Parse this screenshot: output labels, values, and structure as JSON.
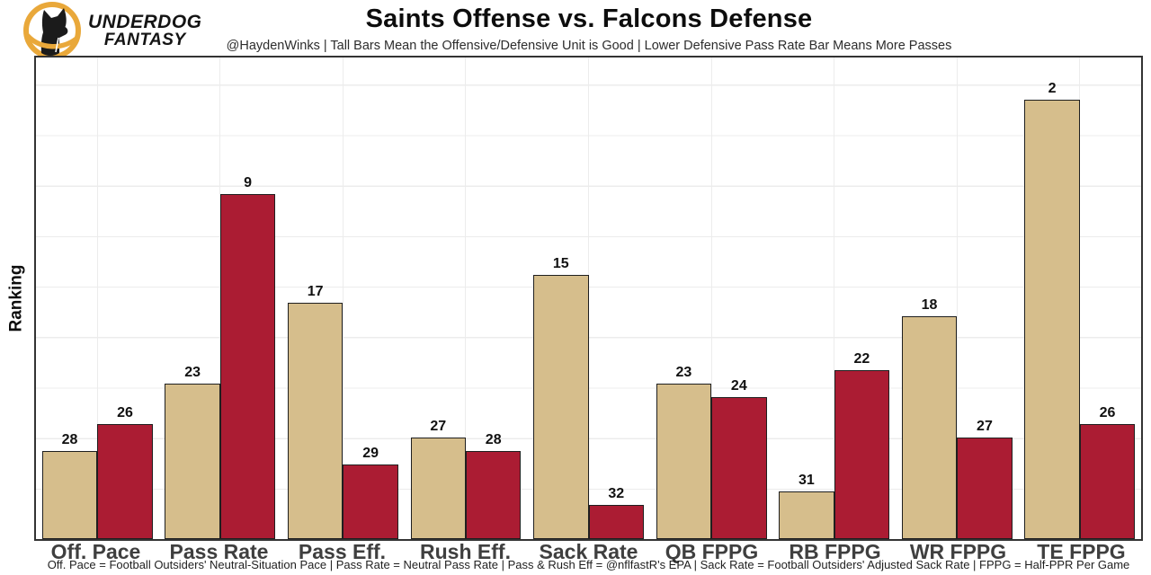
{
  "header": {
    "logo": {
      "line1": "UNDERDOG",
      "line2": "FANTASY"
    },
    "title": "Saints Offense vs. Falcons Defense",
    "subtitle": "@HaydenWinks | Tall Bars Mean the Offensive/Defensive Unit is Good | Lower Defensive Pass Rate Bar Means More Passes"
  },
  "footer": {
    "note": "Off. Pace = Football Outsiders' Neutral-Situation Pace | Pass Rate = Neutral Pass Rate | Pass & Rush Eff = @nflfastR's EPA | Sack Rate = Football Outsiders' Adjusted Sack Rate | FPPG = Half-PPR Per Game"
  },
  "chart_data": {
    "type": "bar",
    "title": "Saints Offense vs. Falcons Defense",
    "ylabel": "Ranking",
    "xlabel": "",
    "categories": [
      "Off. Pace",
      "Pass Rate",
      "Pass Eff.",
      "Rush Eff.",
      "Sack Rate",
      "QB FPPG",
      "RB FPPG",
      "WR FPPG",
      "TE FPPG"
    ],
    "series": [
      {
        "name": "Saints Offense",
        "color": "#D6BE8C",
        "values": [
          28,
          23,
          17,
          27,
          15,
          23,
          31,
          18,
          2
        ]
      },
      {
        "name": "Falcons Defense",
        "color": "#AB1C33",
        "values": [
          26,
          9,
          29,
          28,
          32,
          24,
          22,
          27,
          26
        ]
      }
    ],
    "value_semantics": "NFL ranking out of 32; rank 1 is best; lower rank drawn as taller bar (bar height proportional to 34.5 minus rank)",
    "ylim": [
      0,
      35.6
    ],
    "grid": true,
    "legend": "none",
    "bar_labels": "rank shown above each bar"
  },
  "colors": {
    "saints_gold": "#D6BE8C",
    "falcons_red": "#AB1C33",
    "logo_gold": "#E9A83A",
    "plot_border": "#333333",
    "gridline": "#ECECEC",
    "axis_text": "#3F3F3F"
  }
}
